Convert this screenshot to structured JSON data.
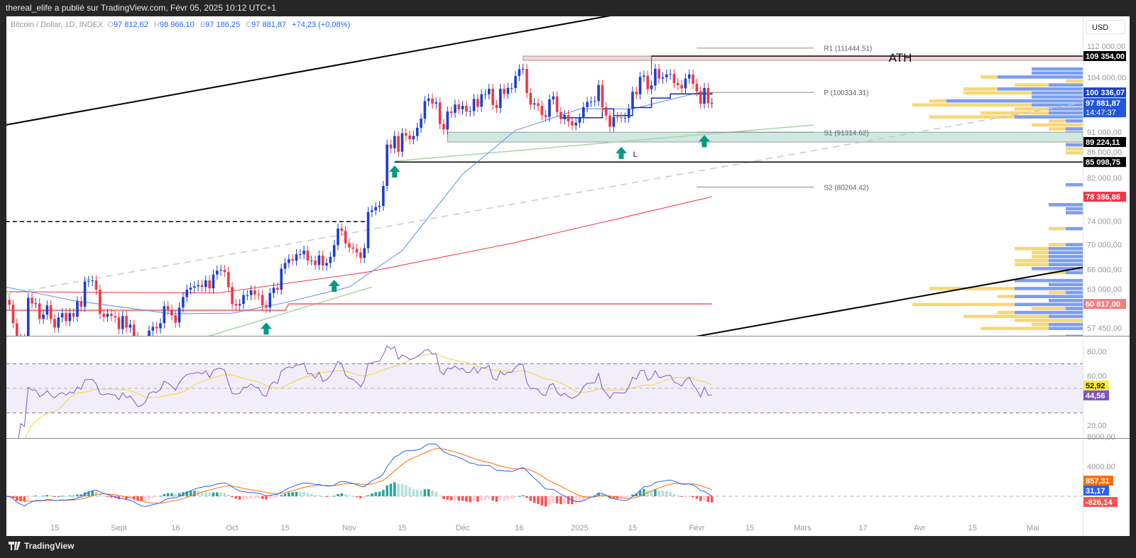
{
  "topbar": {
    "publish_line": "thereal_elife a publié sur TradingView.com, Févr 05, 2025 10:12 UTC+1"
  },
  "legend": {
    "symbol": "Bitcoin / Dollar, 1D, INDEX",
    "open_key": "O",
    "open": "97 812,62",
    "high_key": "H",
    "high": "98 966,10",
    "low_key": "B",
    "low": "97 186,25",
    "close_key": "C",
    "close": "97 881,87",
    "change": "+74,23 (+0,08%)"
  },
  "currency": "USD",
  "footer": {
    "brand": "TradingView"
  },
  "colors": {
    "up": "#1c3fcc",
    "down": "#f23645",
    "arrow": "#089981",
    "rsi": "#7e57c2",
    "rsi_ma": "#f5d530",
    "macd": "#2962ff",
    "signal": "#ff6d00"
  },
  "chart_data": {
    "type": "candlestick",
    "scale": "log",
    "start_date": "2024-08-02",
    "closes": [
      61400,
      60700,
      58100,
      54000,
      56000,
      55000,
      61700,
      60900,
      60900,
      58700,
      59300,
      60600,
      58700,
      57500,
      58900,
      59500,
      58400,
      59500,
      59000,
      61200,
      60400,
      64100,
      64200,
      64300,
      62900,
      59400,
      59000,
      59400,
      59100,
      58900,
      57300,
      59100,
      57500,
      57900,
      56200,
      53900,
      54200,
      54900,
      57100,
      57600,
      57400,
      58100,
      60500,
      60000,
      59200,
      58200,
      60300,
      61800,
      62900,
      63200,
      63400,
      63600,
      63300,
      64300,
      63100,
      65200,
      65800,
      65900,
      65600,
      63300,
      60800,
      60600,
      60800,
      62100,
      62100,
      62800,
      62200,
      62100,
      60600,
      60300,
      62400,
      63200,
      62900,
      66100,
      67000,
      67600,
      67400,
      68400,
      68400,
      69000,
      67400,
      67400,
      66700,
      68200,
      66600,
      67000,
      68000,
      69900,
      72700,
      72300,
      70200,
      69500,
      69300,
      68700,
      67800,
      69400,
      75600,
      75900,
      76500,
      76700,
      80400,
      88700,
      87900,
      90500,
      87200,
      91100,
      90600,
      89800,
      90500,
      92300,
      94300,
      98300,
      98900,
      97700,
      98000,
      93100,
      91900,
      95900,
      95600,
      97500,
      96400,
      97200,
      95900,
      96000,
      98800,
      97000,
      99900,
      99900,
      101200,
      97400,
      96700,
      101200,
      100000,
      101400,
      101400,
      104300,
      106000,
      106100,
      100200,
      97500,
      97800,
      97200,
      95100,
      94700,
      98700,
      99400,
      95800,
      94200,
      95100,
      93700,
      92800,
      93400,
      94400,
      96900,
      98100,
      98200,
      98300,
      102100,
      96900,
      95000,
      92500,
      94700,
      94600,
      94500,
      94500,
      96500,
      100500,
      99900,
      104100,
      104400,
      101100,
      102000,
      106100,
      103700,
      104000,
      104700,
      104800,
      102600,
      102100,
      101300,
      103700,
      104700,
      102400,
      100600,
      97700,
      101400,
      97800,
      97880
    ],
    "price_ticks": [
      {
        "v": 112000,
        "label": "112 000,00"
      },
      {
        "v": 104000,
        "label": "104 000,00"
      },
      {
        "v": 91000,
        "label": "91 000,00"
      },
      {
        "v": 86000,
        "label": "86 000,00"
      },
      {
        "v": 82000,
        "label": "82 000,00"
      },
      {
        "v": 74000,
        "label": "74 000,00"
      },
      {
        "v": 70000,
        "label": "70 000,00"
      },
      {
        "v": 66000,
        "label": "66 000,00"
      },
      {
        "v": 63000,
        "label": "63 000,00"
      },
      {
        "v": 57450,
        "label": "57 450,00"
      }
    ],
    "time_ticks": [
      {
        "d": "2024-08-15",
        "label": "15"
      },
      {
        "d": "2024-09-01",
        "label": "Sept"
      },
      {
        "d": "2024-09-16",
        "label": "16"
      },
      {
        "d": "2024-10-01",
        "label": "Oct"
      },
      {
        "d": "2024-10-15",
        "label": "15"
      },
      {
        "d": "2024-11-01",
        "label": "Nov"
      },
      {
        "d": "2024-11-15",
        "label": "15"
      },
      {
        "d": "2024-12-01",
        "label": "Déc"
      },
      {
        "d": "2024-12-16",
        "label": "16"
      },
      {
        "d": "2025-01-01",
        "label": "2025"
      },
      {
        "d": "2025-01-15",
        "label": "15"
      },
      {
        "d": "2025-02-01",
        "label": "Févr"
      },
      {
        "d": "2025-02-15",
        "label": "15"
      },
      {
        "d": "2025-03-01",
        "label": "Mars"
      },
      {
        "d": "2025-03-17",
        "label": "17"
      },
      {
        "d": "2025-04-01",
        "label": "Avr"
      },
      {
        "d": "2025-04-15",
        "label": "15"
      },
      {
        "d": "2025-05-01",
        "label": "Mai"
      }
    ],
    "price_markers": [
      {
        "price": 109354,
        "label": "109 354,00",
        "bg": "#000000",
        "fg": "#ffffff"
      },
      {
        "price": 100336.07,
        "label": "100 336,07",
        "bg": "#1a3fd1",
        "fg": "#ffffff"
      },
      {
        "price": 97881.87,
        "label": "97 881,87",
        "sub": "14:47:37",
        "bg": "#2157d8",
        "fg": "#ffffff"
      },
      {
        "price": 89224.11,
        "label": "89 224,11",
        "bg": "#000000",
        "fg": "#ffffff"
      },
      {
        "price": 85098.75,
        "label": "85 098,75",
        "bg": "#000000",
        "fg": "#ffffff"
      },
      {
        "price": 78386.86,
        "label": "78 386,86",
        "bg": "#f23645",
        "fg": "#ffffff"
      },
      {
        "price": 60817,
        "label": "60 817,00",
        "bg": "#f77c80",
        "fg": "#ffffff"
      }
    ],
    "trendlines": [
      {
        "id": "upper-channel",
        "from": [
          "2024-08-02",
          92900
        ],
        "to": [
          "2025-01-12",
          120900
        ],
        "color": "#000000",
        "dash": false,
        "extend": true
      },
      {
        "id": "lower-channel",
        "from": [
          "2025-01-31",
          56240
        ],
        "to": [
          "2025-05-14",
          66300
        ],
        "color": "#000000",
        "dash": false,
        "extend": true
      },
      {
        "id": "gray-dashed-trend",
        "from": [
          "2024-08-02",
          62200
        ],
        "to": [
          "2025-05-14",
          97900
        ],
        "color": "#c8c8c8",
        "dash": true,
        "extend": false
      },
      {
        "id": "green-support-1",
        "from": [
          "2024-09-24",
          56240
        ],
        "to": [
          "2024-11-07",
          63300
        ],
        "color": "#a5d6a7",
        "dash": false,
        "extend": false
      },
      {
        "id": "green-support-2",
        "from": [
          "2024-11-13",
          85280
        ],
        "to": [
          "2025-03-04",
          92900
        ],
        "color": "#a5d6a7",
        "dash": false,
        "extend": false
      }
    ],
    "hlines": [
      {
        "id": "dashed-resistance",
        "price": 73900,
        "from": "2024-08-02",
        "to": "2024-11-06",
        "dash": true
      },
      {
        "id": "support-85098",
        "price": 85098.75,
        "from": "2024-11-13",
        "to": null,
        "dash": false
      }
    ],
    "zones": [
      {
        "id": "support-zone",
        "low": 89224.11,
        "high": 91314,
        "from": "2024-11-27",
        "fill": "#cfe9e2",
        "stroke": "#9e9e9e"
      },
      {
        "id": "ath-zone",
        "low": 108250,
        "high": 109354,
        "from": "2024-12-17",
        "fill": "#f8d3d6",
        "stroke": "#9e9e9e"
      }
    ],
    "ath_label": "ATH",
    "pivots": [
      {
        "label": "R1 (111444.51)",
        "price": 111444.51
      },
      {
        "label": "P (100334.31)",
        "price": 100334.31
      },
      {
        "label": "S1 (91314.62)",
        "price": 91314.62
      },
      {
        "label": "S2 (80204.42)",
        "price": 80204.42
      }
    ],
    "pivot_range": [
      "2025-02-01",
      "2025-03-04"
    ],
    "arrows": [
      [
        "2024-10-10",
        58200
      ],
      [
        "2024-10-28",
        64400
      ],
      [
        "2024-11-13",
        84400
      ],
      [
        "2025-01-12",
        88200
      ],
      [
        "2025-02-03",
        90700
      ]
    ],
    "low_marker": {
      "label": "L",
      "date": "2025-01-14",
      "price": 87900
    },
    "ma_red": [
      [
        "2024-08-02",
        62600
      ],
      [
        "2024-09-27",
        62400
      ],
      [
        "2024-11-05",
        65500
      ],
      [
        "2024-12-14",
        70200
      ],
      [
        "2025-01-12",
        74550
      ],
      [
        "2025-02-05",
        78386.86
      ]
    ],
    "level_red": [
      [
        "2024-08-02",
        59900
      ],
      [
        "2024-10-15",
        59900
      ],
      [
        "2024-10-16",
        60817
      ],
      [
        "2025-02-05",
        60817
      ]
    ],
    "ma_blue": [
      [
        "2024-08-02",
        63300
      ],
      [
        "2024-08-20",
        61300
      ],
      [
        "2024-09-15",
        59400
      ],
      [
        "2024-10-01",
        59500
      ],
      [
        "2024-10-15",
        61000
      ],
      [
        "2024-11-01",
        63300
      ],
      [
        "2024-11-15",
        69000
      ],
      [
        "2024-12-01",
        82700
      ],
      [
        "2024-12-15",
        91700
      ],
      [
        "2025-01-01",
        96500
      ],
      [
        "2025-01-15",
        96500
      ],
      [
        "2025-02-01",
        100200
      ],
      [
        "2025-02-05",
        99900
      ]
    ],
    "step_blue": [
      [
        "2024-12-27",
        94500
      ],
      [
        "2025-01-07",
        96500
      ],
      [
        "2025-01-10",
        95000
      ],
      [
        "2025-01-15",
        96800
      ],
      [
        "2025-01-20",
        99000
      ],
      [
        "2025-01-25",
        100000
      ],
      [
        "2025-02-05",
        100336.07
      ]
    ],
    "rsi": {
      "ticks": [
        {
          "v": 80,
          "label": "80,00"
        },
        {
          "v": 60,
          "label": "60,00"
        },
        {
          "v": 20,
          "label": "20,00"
        }
      ],
      "upper": 70,
      "middle": 50,
      "lower": 30,
      "ma_label": "52,92",
      "rsi_label": "44,56"
    },
    "macd": {
      "ticks": [
        {
          "v": 8000,
          "label": "8000,00"
        },
        {
          "v": 4000,
          "label": "4000,00"
        }
      ],
      "signal_label": "857,31",
      "macd_label": "31,17",
      "hist_label": "-826,14"
    }
  }
}
